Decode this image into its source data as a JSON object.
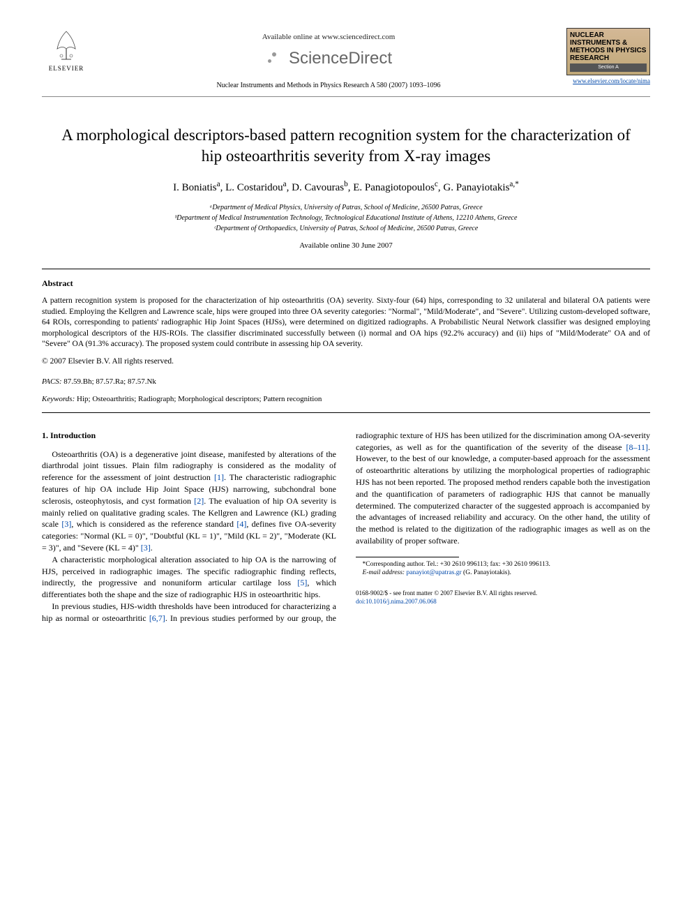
{
  "header": {
    "elsevier_label": "ELSEVIER",
    "available_online": "Available online at www.sciencedirect.com",
    "sciencedirect": "ScienceDirect",
    "journal_ref": "Nuclear Instruments and Methods in Physics Research A 580 (2007) 1093–1096",
    "journal_box_title": "NUCLEAR INSTRUMENTS & METHODS IN PHYSICS RESEARCH",
    "journal_box_section": "Section A",
    "journal_link": "www.elsevier.com/locate/nima"
  },
  "article": {
    "title": "A morphological descriptors-based pattern recognition system for the characterization of hip osteoarthritis severity from X-ray images",
    "authors_html": "I. Boniatis<sup>a</sup>, L. Costaridou<sup>a</sup>, D. Cavouras<sup>b</sup>, E. Panagiotopoulos<sup>c</sup>, G. Panayiotakis<sup>a,*</sup>",
    "affiliations": [
      "ᵃDepartment of Medical Physics, University of Patras, School of Medicine, 26500 Patras, Greece",
      "ᵇDepartment of Medical Instrumentation Technology, Technological Educational Institute of Athens, 12210 Athens, Greece",
      "ᶜDepartment of Orthopaedics, University of Patras, School of Medicine, 26500 Patras, Greece"
    ],
    "available_date": "Available online 30 June 2007"
  },
  "abstract": {
    "label": "Abstract",
    "text": "A pattern recognition system is proposed for the characterization of hip osteoarthritis (OA) severity. Sixty-four (64) hips, corresponding to 32 unilateral and bilateral OA patients were studied. Employing the Kellgren and Lawrence scale, hips were grouped into three OA severity categories: \"Normal\", \"Mild/Moderate\", and \"Severe\". Utilizing custom-developed software, 64 ROIs, corresponding to patients' radiographic Hip Joint Spaces (HJSs), were determined on digitized radiographs. A Probabilistic Neural Network classifier was designed employing morphological descriptors of the HJS-ROIs. The classifier discriminated successfully between (i) normal and OA hips (92.2% accuracy) and (ii) hips of \"Mild/Moderate\" OA and of \"Severe\" OA (91.3% accuracy). The proposed system could contribute in assessing hip OA severity.",
    "copyright": "© 2007 Elsevier B.V. All rights reserved."
  },
  "pacs": {
    "label": "PACS:",
    "value": "87.59.Bh; 87.57.Ra; 87.57.Nk"
  },
  "keywords": {
    "label": "Keywords:",
    "value": "Hip; Osteoarthritis; Radiograph; Morphological descriptors; Pattern recognition"
  },
  "body": {
    "section_head": "1. Introduction",
    "para1": "Osteoarthritis (OA) is a degenerative joint disease, manifested by alterations of the diarthrodal joint tissues. Plain film radiography is considered as the modality of reference for the assessment of joint destruction [1]. The characteristic radiographic features of hip OA include Hip Joint Space (HJS) narrowing, subchondral bone sclerosis, osteophytosis, and cyst formation [2]. The evaluation of hip OA severity is mainly relied on qualitative grading scales. The Kellgren and Lawrence (KL) grading scale [3], which is considered as the reference standard [4], defines five OA-severity categories: \"Normal (KL = 0)\", \"Doubtful (KL = 1)\", \"Mild (KL = 2)\", \"Moderate (KL = 3)\", and \"Severe (KL = 4)\" [3].",
    "para2": "A characteristic morphological alteration associated to hip OA is the narrowing of HJS, perceived in radiographic images. The specific radiographic finding reflects, indirectly, the progressive and nonuniform articular cartilage loss [5], which differentiates both the shape and the size of radiographic HJS in osteoarthritic hips.",
    "para3": "In previous studies, HJS-width thresholds have been introduced for characterizing a hip as normal or osteoarthritic [6,7]. In previous studies performed by our group, the radiographic texture of HJS has been utilized for the discrimination among OA-severity categories, as well as for the quantification of the severity of the disease [8–11]. However, to the best of our knowledge, a computer-based approach for the assessment of osteoarthritic alterations by utilizing the morphological properties of radiographic HJS has not been reported. The proposed method renders capable both the investigation and the quantification of parameters of radiographic HJS that cannot be manually determined. The computerized character of the suggested approach is accompanied by the advantages of increased reliability and accuracy. On the other hand, the utility of the method is related to the digitization of the radiographic images as well as on the availability of proper software."
  },
  "footnote": {
    "corr": "*Corresponding author. Tel.: +30 2610 996113; fax: +30 2610 996113.",
    "email_label": "E-mail address:",
    "email": "panayiot@upatras.gr",
    "email_name": "(G. Panayiotakis)."
  },
  "bottom": {
    "front_matter": "0168-9002/$ - see front matter © 2007 Elsevier B.V. All rights reserved.",
    "doi": "doi:10.1016/j.nima.2007.06.068"
  },
  "colors": {
    "link": "#0048aa",
    "journal_bg_top": "#d4b896",
    "journal_bg_bot": "#c0a878",
    "text": "#000000",
    "bg": "#ffffff"
  }
}
